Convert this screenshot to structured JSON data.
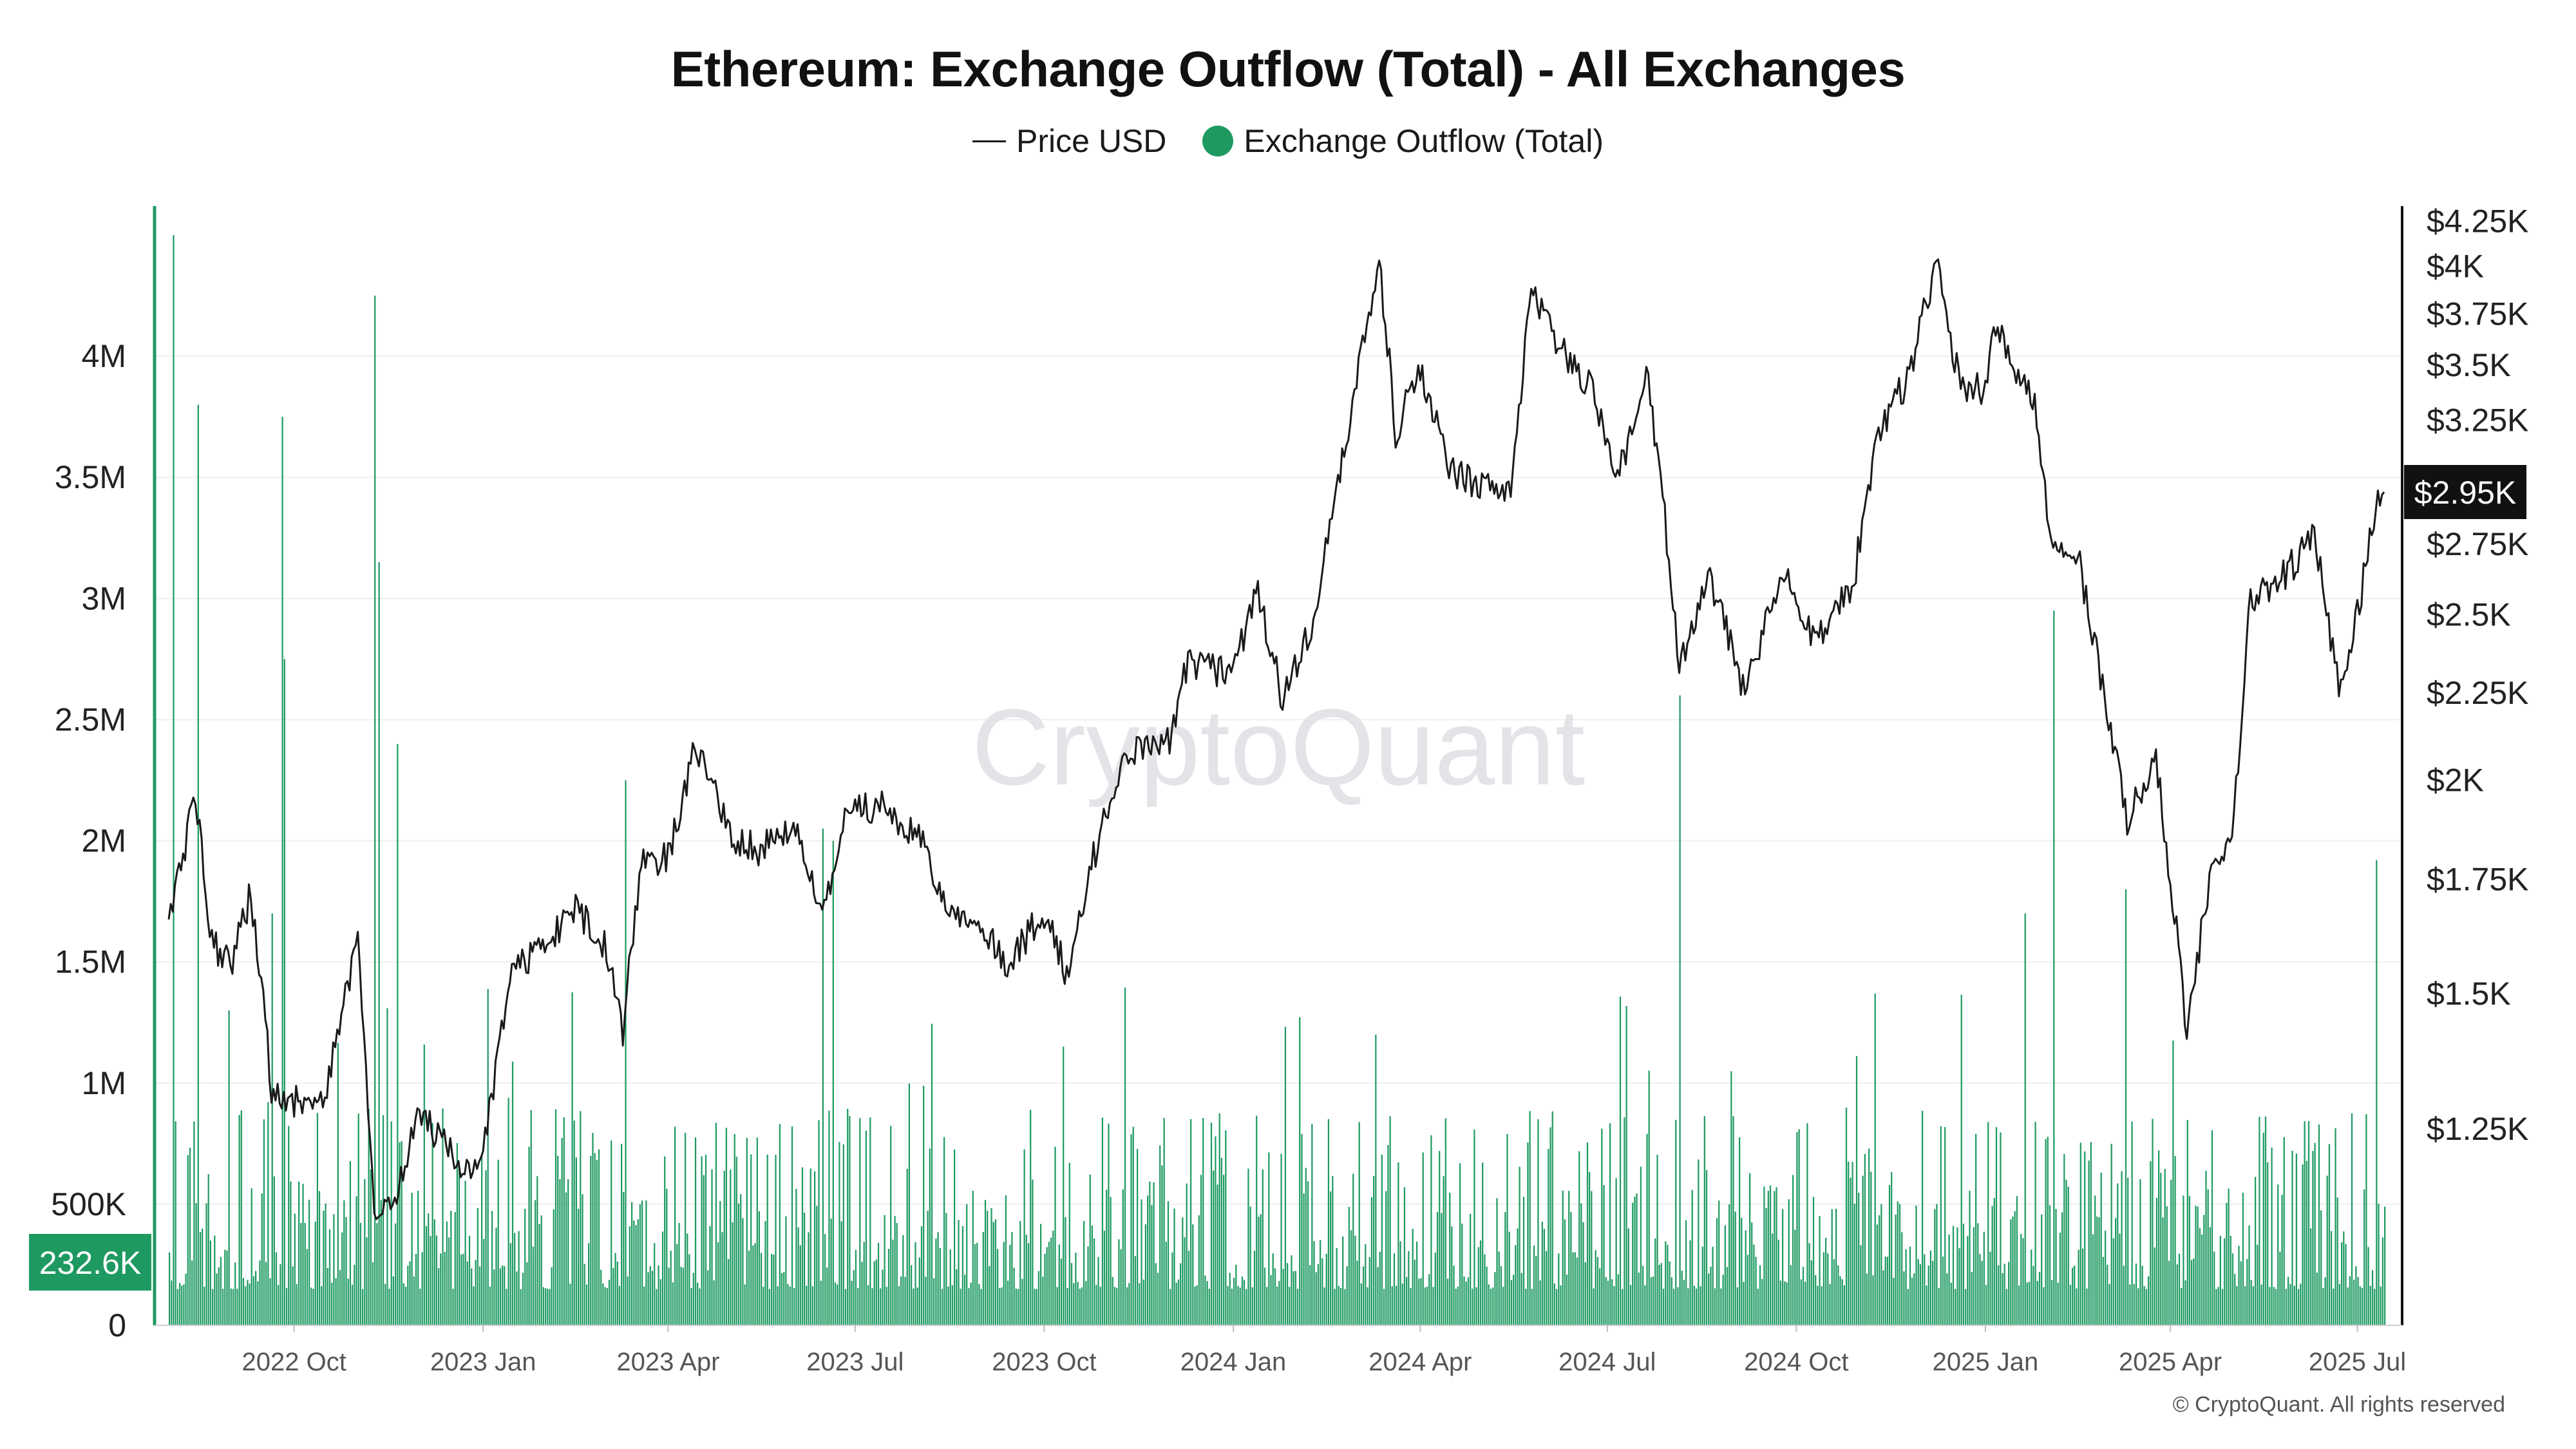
{
  "title": "Ethereum: Exchange Outflow (Total) - All Exchanges",
  "legend": {
    "price_label": "Price USD",
    "outflow_label": "Exchange Outflow (Total)"
  },
  "watermark": "CryptoQuant",
  "copyright": "© CryptoQuant. All rights reserved",
  "colors": {
    "outflow": "#1e9a61",
    "price": "#1a1a1a",
    "price_badge_bg": "#111111",
    "outflow_badge_bg": "#1e9a61",
    "grid": "#efefef"
  },
  "chart_data": {
    "type": "bar+line",
    "x_range": [
      "2022-08-01",
      "2025-07-14"
    ],
    "left_axis": {
      "label": "Exchange Outflow (Total)",
      "range": [
        0,
        4500000
      ],
      "ticks": [
        {
          "value": 0,
          "label": "0"
        },
        {
          "value": 500000,
          "label": "500K"
        },
        {
          "value": 1000000,
          "label": "1M"
        },
        {
          "value": 1500000,
          "label": "1.5M"
        },
        {
          "value": 2000000,
          "label": "2M"
        },
        {
          "value": 2500000,
          "label": "2.5M"
        },
        {
          "value": 3000000,
          "label": "3M"
        },
        {
          "value": 3500000,
          "label": "3.5M"
        },
        {
          "value": 4000000,
          "label": "4M"
        }
      ]
    },
    "right_axis": {
      "label": "Price USD",
      "scale": "log",
      "range": [
        1000,
        4300
      ],
      "ticks": [
        {
          "value": 1250,
          "label": "$1.25K"
        },
        {
          "value": 1500,
          "label": "$1.5K"
        },
        {
          "value": 1750,
          "label": "$1.75K"
        },
        {
          "value": 2000,
          "label": "$2K"
        },
        {
          "value": 2250,
          "label": "$2.25K"
        },
        {
          "value": 2500,
          "label": "$2.5K"
        },
        {
          "value": 2750,
          "label": "$2.75K"
        },
        {
          "value": 3250,
          "label": "$3.25K"
        },
        {
          "value": 3500,
          "label": "$3.5K"
        },
        {
          "value": 3750,
          "label": "$3.75K"
        },
        {
          "value": 4000,
          "label": "$4K"
        },
        {
          "value": 4250,
          "label": "$4.25K"
        }
      ]
    },
    "x_ticks": [
      {
        "date": "2022-10-01",
        "label": "2022 Oct"
      },
      {
        "date": "2023-01-01",
        "label": "2023 Jan"
      },
      {
        "date": "2023-04-01",
        "label": "2023 Apr"
      },
      {
        "date": "2023-07-01",
        "label": "2023 Jul"
      },
      {
        "date": "2023-10-01",
        "label": "2023 Oct"
      },
      {
        "date": "2024-01-01",
        "label": "2024 Jan"
      },
      {
        "date": "2024-04-01",
        "label": "2024 Apr"
      },
      {
        "date": "2024-07-01",
        "label": "2024 Jul"
      },
      {
        "date": "2024-10-01",
        "label": "2024 Oct"
      },
      {
        "date": "2025-01-01",
        "label": "2025 Jan"
      },
      {
        "date": "2025-04-01",
        "label": "2025 Apr"
      },
      {
        "date": "2025-07-01",
        "label": "2025 Jul"
      }
    ],
    "series": [
      {
        "name": "Price USD",
        "type": "line",
        "axis": "right",
        "points": [
          [
            "2022-08-01",
            1650
          ],
          [
            "2022-08-14",
            1950
          ],
          [
            "2022-08-22",
            1600
          ],
          [
            "2022-09-01",
            1570
          ],
          [
            "2022-09-10",
            1720
          ],
          [
            "2022-09-20",
            1320
          ],
          [
            "2022-10-01",
            1300
          ],
          [
            "2022-10-15",
            1290
          ],
          [
            "2022-11-01",
            1600
          ],
          [
            "2022-11-09",
            1100
          ],
          [
            "2022-11-20",
            1150
          ],
          [
            "2022-12-01",
            1280
          ],
          [
            "2022-12-20",
            1190
          ],
          [
            "2023-01-01",
            1200
          ],
          [
            "2023-01-15",
            1550
          ],
          [
            "2023-02-01",
            1600
          ],
          [
            "2023-02-15",
            1680
          ],
          [
            "2023-03-01",
            1600
          ],
          [
            "2023-03-10",
            1430
          ],
          [
            "2023-03-20",
            1800
          ],
          [
            "2023-04-01",
            1800
          ],
          [
            "2023-04-15",
            2100
          ],
          [
            "2023-05-01",
            1850
          ],
          [
            "2023-05-15",
            1820
          ],
          [
            "2023-06-01",
            1880
          ],
          [
            "2023-06-15",
            1650
          ],
          [
            "2023-06-25",
            1880
          ],
          [
            "2023-07-01",
            1920
          ],
          [
            "2023-07-15",
            1930
          ],
          [
            "2023-08-01",
            1850
          ],
          [
            "2023-08-17",
            1680
          ],
          [
            "2023-09-01",
            1640
          ],
          [
            "2023-09-12",
            1560
          ],
          [
            "2023-10-01",
            1670
          ],
          [
            "2023-10-12",
            1540
          ],
          [
            "2023-10-25",
            1800
          ],
          [
            "2023-11-10",
            2080
          ],
          [
            "2023-12-01",
            2100
          ],
          [
            "2023-12-10",
            2350
          ],
          [
            "2024-01-01",
            2300
          ],
          [
            "2024-01-12",
            2600
          ],
          [
            "2024-01-25",
            2230
          ],
          [
            "2024-02-10",
            2500
          ],
          [
            "2024-02-28",
            3300
          ],
          [
            "2024-03-12",
            4020
          ],
          [
            "2024-03-20",
            3200
          ],
          [
            "2024-04-01",
            3500
          ],
          [
            "2024-04-15",
            3050
          ],
          [
            "2024-05-01",
            2970
          ],
          [
            "2024-05-15",
            2950
          ],
          [
            "2024-05-25",
            3850
          ],
          [
            "2024-06-10",
            3550
          ],
          [
            "2024-06-25",
            3380
          ],
          [
            "2024-07-05",
            2950
          ],
          [
            "2024-07-20",
            3480
          ],
          [
            "2024-08-05",
            2350
          ],
          [
            "2024-08-20",
            2620
          ],
          [
            "2024-09-06",
            2250
          ],
          [
            "2024-09-25",
            2650
          ],
          [
            "2024-10-10",
            2400
          ],
          [
            "2024-10-29",
            2620
          ],
          [
            "2024-11-10",
            3200
          ],
          [
            "2024-11-25",
            3450
          ],
          [
            "2024-12-08",
            4020
          ],
          [
            "2024-12-20",
            3380
          ],
          [
            "2025-01-01",
            3400
          ],
          [
            "2025-01-06",
            3700
          ],
          [
            "2025-01-25",
            3300
          ],
          [
            "2025-02-03",
            2700
          ],
          [
            "2025-02-15",
            2700
          ],
          [
            "2025-03-01",
            2200
          ],
          [
            "2025-03-11",
            1900
          ],
          [
            "2025-03-25",
            2050
          ],
          [
            "2025-04-09",
            1420
          ],
          [
            "2025-04-22",
            1800
          ],
          [
            "2025-05-01",
            1820
          ],
          [
            "2025-05-10",
            2550
          ],
          [
            "2025-05-28",
            2650
          ],
          [
            "2025-06-10",
            2780
          ],
          [
            "2025-06-22",
            2250
          ],
          [
            "2025-07-01",
            2500
          ],
          [
            "2025-07-10",
            2900
          ],
          [
            "2025-07-14",
            2950
          ]
        ]
      },
      {
        "name": "Exchange Outflow (Total)",
        "type": "bar",
        "axis": "left",
        "peaks": [
          [
            "2022-08-03",
            4500000
          ],
          [
            "2022-08-15",
            3800000
          ],
          [
            "2022-08-30",
            1300000
          ],
          [
            "2022-09-20",
            1700000
          ],
          [
            "2022-09-25",
            3750000
          ],
          [
            "2022-09-26",
            2750000
          ],
          [
            "2022-11-09",
            4250000
          ],
          [
            "2022-11-11",
            3150000
          ],
          [
            "2022-11-20",
            2400000
          ],
          [
            "2023-03-11",
            2250000
          ],
          [
            "2023-06-15",
            2050000
          ],
          [
            "2023-06-20",
            2000000
          ],
          [
            "2023-10-10",
            1150000
          ],
          [
            "2024-03-10",
            1200000
          ],
          [
            "2024-08-05",
            2600000
          ],
          [
            "2025-01-20",
            1700000
          ],
          [
            "2025-02-03",
            2950000
          ],
          [
            "2025-03-10",
            1800000
          ],
          [
            "2025-07-10",
            1920000
          ]
        ],
        "baseline_range": [
          150000,
          900000
        ]
      }
    ],
    "current_values": {
      "price_label": "$2.95K",
      "outflow_label": "232.6K"
    }
  }
}
